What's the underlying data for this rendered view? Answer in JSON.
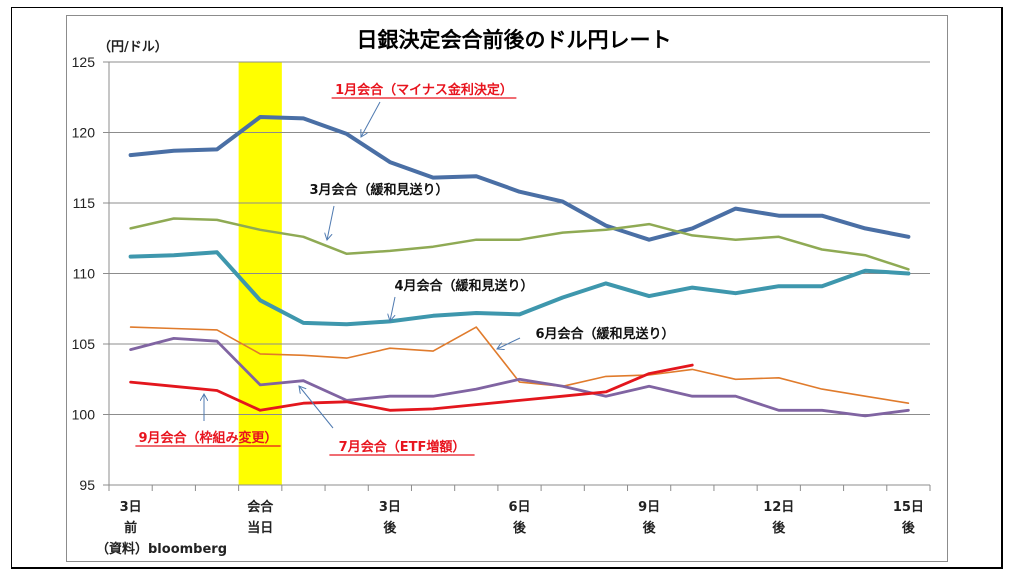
{
  "chart_data": {
    "type": "line",
    "title": "日銀決定会合前後のドル円レート",
    "ylabel": "（円/ドル）",
    "xlabel": "",
    "source": "（資料）bloomberg",
    "ylim": [
      95,
      125
    ],
    "yticks": [
      95,
      100,
      105,
      110,
      115,
      120,
      125
    ],
    "grid": true,
    "n_points": 19,
    "x_tick_labels": [
      {
        "index": 0,
        "line1": "3日",
        "line2": "前"
      },
      {
        "index": 3,
        "line1": "会合",
        "line2": "当日"
      },
      {
        "index": 6,
        "line1": "3日",
        "line2": "後"
      },
      {
        "index": 9,
        "line1": "6日",
        "line2": "後"
      },
      {
        "index": 12,
        "line1": "9日",
        "line2": "後"
      },
      {
        "index": 15,
        "line1": "12日",
        "line2": "後"
      },
      {
        "index": 18,
        "line1": "15日",
        "line2": "後"
      }
    ],
    "highlight": {
      "index": 3,
      "label": "会合当日",
      "color": "#ffff00"
    },
    "series": [
      {
        "name": "1月会合（マイナス金利決定）",
        "color": "#4a6fa5",
        "width": 4,
        "label_style": "red",
        "values": [
          118.4,
          118.7,
          118.8,
          121.1,
          121.0,
          119.9,
          117.9,
          116.8,
          116.9,
          115.8,
          115.1,
          113.4,
          112.4,
          113.2,
          114.6,
          114.1,
          114.1,
          113.2,
          112.6
        ]
      },
      {
        "name": "3月会合（緩和見送り）",
        "color": "#8faa54",
        "width": 2.5,
        "label_style": "black",
        "values": [
          113.2,
          113.9,
          113.8,
          113.1,
          112.6,
          111.4,
          111.6,
          111.9,
          112.4,
          112.4,
          112.9,
          113.1,
          113.5,
          112.7,
          112.4,
          112.6,
          111.7,
          111.3,
          110.3
        ]
      },
      {
        "name": "4月会合（緩和見送り）",
        "color": "#3e97ad",
        "width": 4,
        "label_style": "black",
        "values": [
          111.2,
          111.3,
          111.5,
          108.1,
          106.5,
          106.4,
          106.6,
          107.0,
          107.2,
          107.1,
          108.3,
          109.3,
          108.4,
          109.0,
          108.6,
          109.1,
          109.1,
          110.2,
          110.0
        ]
      },
      {
        "name": "6月会合（緩和見送り）",
        "color": "#e07b2c",
        "width": 1.6,
        "label_style": "black",
        "values": [
          106.2,
          106.1,
          106.0,
          104.3,
          104.2,
          104.0,
          104.7,
          104.5,
          106.2,
          102.3,
          102.0,
          102.7,
          102.8,
          103.2,
          102.5,
          102.6,
          101.8,
          101.3,
          100.8
        ]
      },
      {
        "name": "7月会合（ETF増額）",
        "color": "#8064a2",
        "width": 2.8,
        "label_style": "red",
        "values": [
          104.6,
          105.4,
          105.2,
          102.1,
          102.4,
          101.0,
          101.3,
          101.3,
          101.8,
          102.5,
          102.0,
          101.3,
          102.0,
          101.3,
          101.3,
          100.3,
          100.3,
          99.9,
          100.3
        ]
      },
      {
        "name": "9月会合（枠組み変更）",
        "color": "#e3161d",
        "width": 2.8,
        "label_style": "red",
        "values": [
          102.3,
          102.0,
          101.7,
          100.3,
          100.8,
          100.9,
          100.3,
          100.4,
          100.7,
          101.0,
          101.3,
          101.6,
          102.9,
          103.5
        ]
      }
    ],
    "annotations": [
      {
        "series": 0,
        "text": "1月会合（マイナス金利決定）",
        "style": "red",
        "underline": true,
        "point_index": 5
      },
      {
        "series": 1,
        "text": "3月会合（緩和見送り）",
        "style": "black",
        "underline": false,
        "point_index": 5
      },
      {
        "series": 2,
        "text": "4月会合（緩和見送り）",
        "style": "black",
        "underline": false,
        "point_index": 6
      },
      {
        "series": 3,
        "text": "6月会合（緩和見送り）",
        "style": "black",
        "underline": false,
        "point_index": 9
      },
      {
        "series": 4,
        "text": "7月会合（ETF増額）",
        "style": "red",
        "underline": true,
        "point_index": 4
      },
      {
        "series": 5,
        "text": "9月会合（枠組み変更）",
        "style": "red",
        "underline": true,
        "point_index": 2
      }
    ]
  }
}
